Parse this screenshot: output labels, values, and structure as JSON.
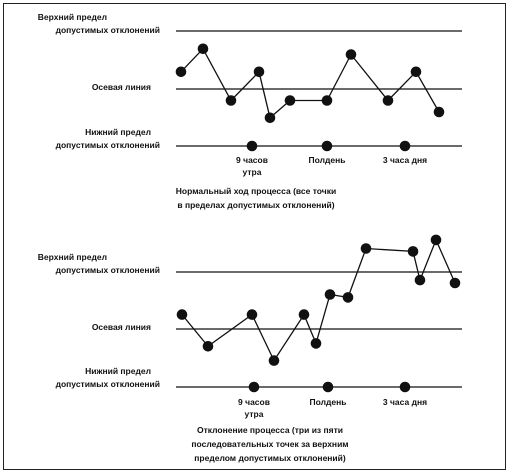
{
  "chart_data": [
    {
      "type": "line",
      "labels": {
        "upper": [
          "Верхний предел",
          "допустимых отклонений"
        ],
        "center": [
          "Осевая линия"
        ],
        "lower": [
          "Нижний предел",
          "допустимых отклонений"
        ]
      },
      "ylim": [
        -1,
        1
      ],
      "y": [
        0.3,
        0.7,
        -0.2,
        0.3,
        -0.5,
        -0.2,
        -0.2,
        0.6,
        -0.2,
        0.3,
        -0.4
      ],
      "time_markers": [
        {
          "label": [
            "9 часов",
            "утра"
          ],
          "x": 2.5
        },
        {
          "label": [
            "Полдень"
          ],
          "x": 5.8
        },
        {
          "label": [
            "3 часа дня"
          ],
          "x": 8.6
        }
      ],
      "caption": [
        "Нормальный ход процесса (все точки",
        "в пределах допустимых отклонений)"
      ]
    },
    {
      "type": "line",
      "labels": {
        "upper": [
          "Верхний предел",
          "допустимых отклонений"
        ],
        "center": [
          "Осевая линия"
        ],
        "lower": [
          "Нижний предел",
          "допустимых отклонений"
        ]
      },
      "ylim": [
        -1,
        1
      ],
      "y": [
        0.25,
        -0.3,
        0.25,
        -0.55,
        0.25,
        -0.25,
        0.6,
        0.55,
        1.4,
        1.35,
        0.85,
        1.55,
        0.8
      ],
      "time_markers": [
        {
          "label": [
            "9 часов",
            "утра"
          ],
          "x": 2.5
        },
        {
          "label": [
            "Полдень"
          ],
          "x": 5.8
        },
        {
          "label": [
            "3 часа дня"
          ],
          "x": 8.6
        }
      ],
      "caption": [
        "Отклонение процесса (три из пяти",
        "последовательных точек за верхним",
        "пределом допустимых отклонений)"
      ]
    }
  ]
}
